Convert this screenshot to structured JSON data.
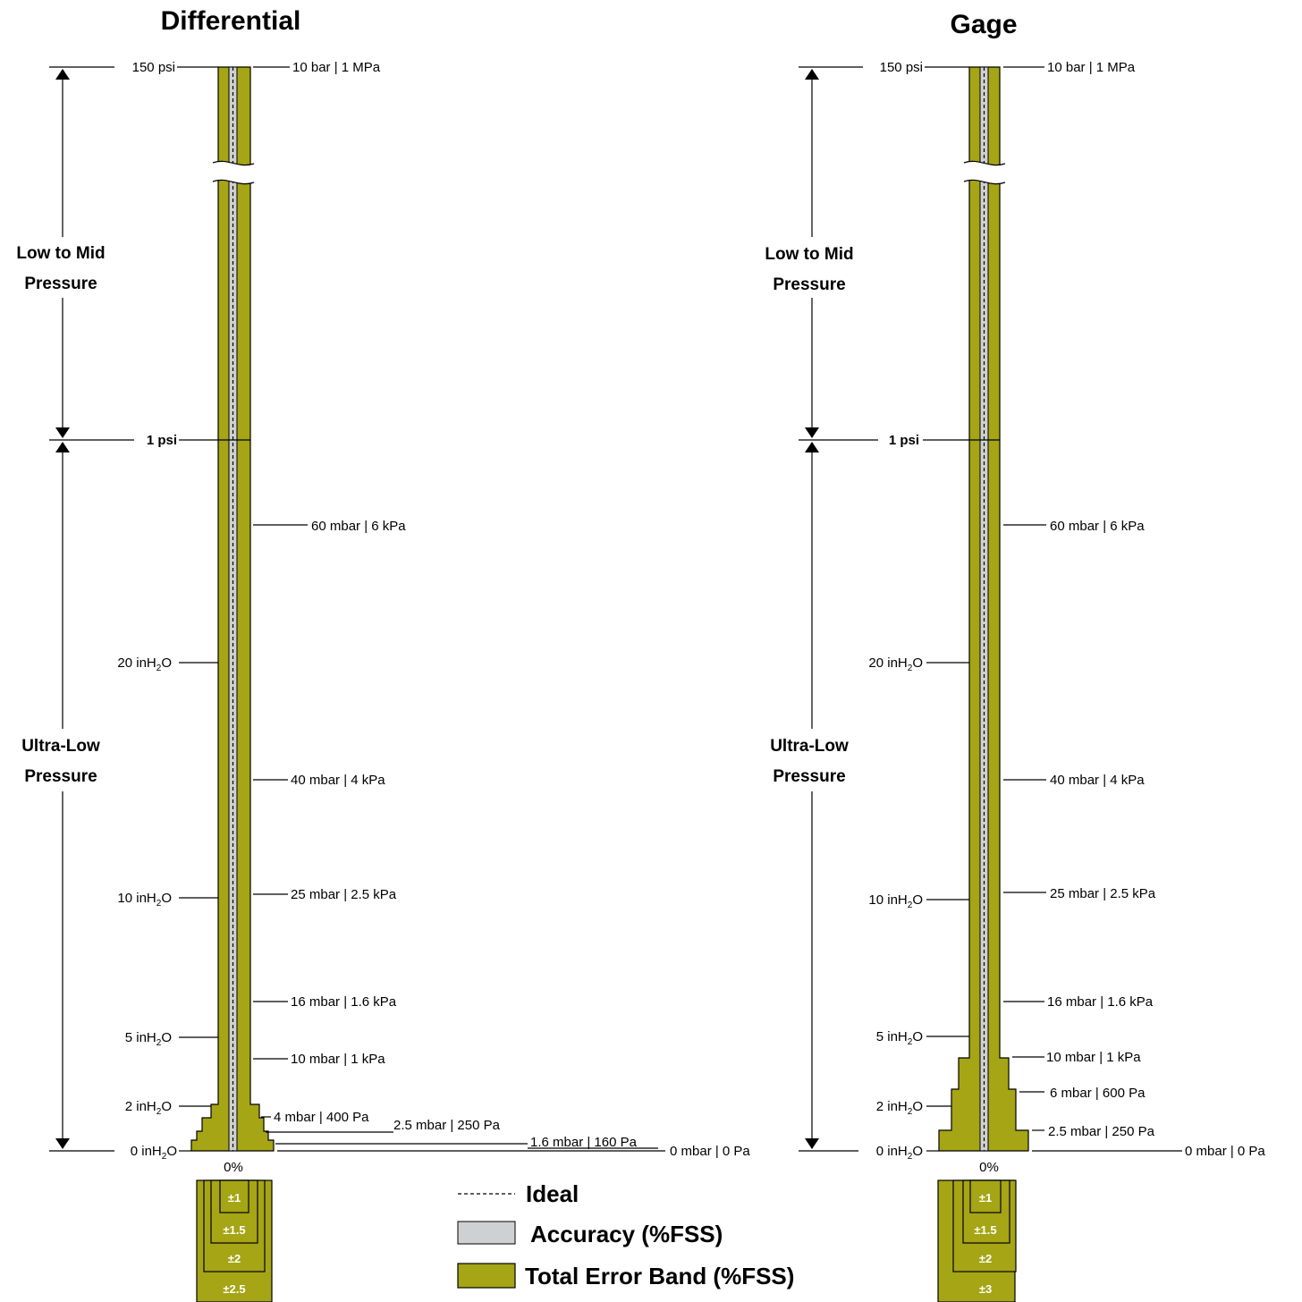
{
  "colors": {
    "total_error_band": "#a5a515",
    "accuracy": "#cfd0d2",
    "outline": "#000000"
  },
  "differential": {
    "title": "Differential",
    "region_high": [
      "Low to Mid",
      "Pressure"
    ],
    "region_low": [
      "Ultra-Low",
      "Pressure"
    ],
    "left_labels": {
      "top": "150 psi",
      "one_psi": "1 psi",
      "in20": "20 inH",
      "in10": "10 inH",
      "in5": "5 inH",
      "in2": "2 inH",
      "in0": "0 inH",
      "suffix": "O",
      "sub": "2"
    },
    "right_labels": [
      "10 bar | 1 MPa",
      "60 mbar | 6 kPa",
      "40 mbar | 4 kPa",
      "25 mbar | 2.5 kPa",
      "16 mbar | 1.6 kPa",
      "10 mbar | 1 kPa",
      "4 mbar | 400 Pa",
      "2.5 mbar | 250 Pa",
      "1.6 mbar | 160 Pa",
      "0 mbar | 0 Pa"
    ],
    "zero": "0%",
    "bands": [
      "±1",
      "±1.5",
      "±2",
      "±2.5"
    ]
  },
  "gage": {
    "title": "Gage",
    "region_high": [
      "Low to Mid",
      "Pressure"
    ],
    "region_low": [
      "Ultra-Low",
      "Pressure"
    ],
    "left_labels": {
      "top": "150 psi",
      "one_psi": "1 psi",
      "in20": "20 inH",
      "in10": "10 inH",
      "in5": "5 inH",
      "in2": "2 inH",
      "in0": "0 inH",
      "suffix": "O",
      "sub": "2"
    },
    "right_labels": [
      "10 bar | 1 MPa",
      "60 mbar | 6 kPa",
      "40 mbar | 4 kPa",
      "25 mbar | 2.5 kPa",
      "16 mbar | 1.6 kPa",
      "10 mbar | 1 kPa",
      "6 mbar | 600 Pa",
      "2.5 mbar | 250 Pa",
      "0 mbar | 0 Pa"
    ],
    "zero": "0%",
    "bands": [
      "±1",
      "±1.5",
      "±2",
      "±3"
    ]
  },
  "legend": {
    "ideal": "Ideal",
    "accuracy": "Accuracy (%FSS)",
    "total_error_band": "Total Error Band (%FSS)"
  }
}
